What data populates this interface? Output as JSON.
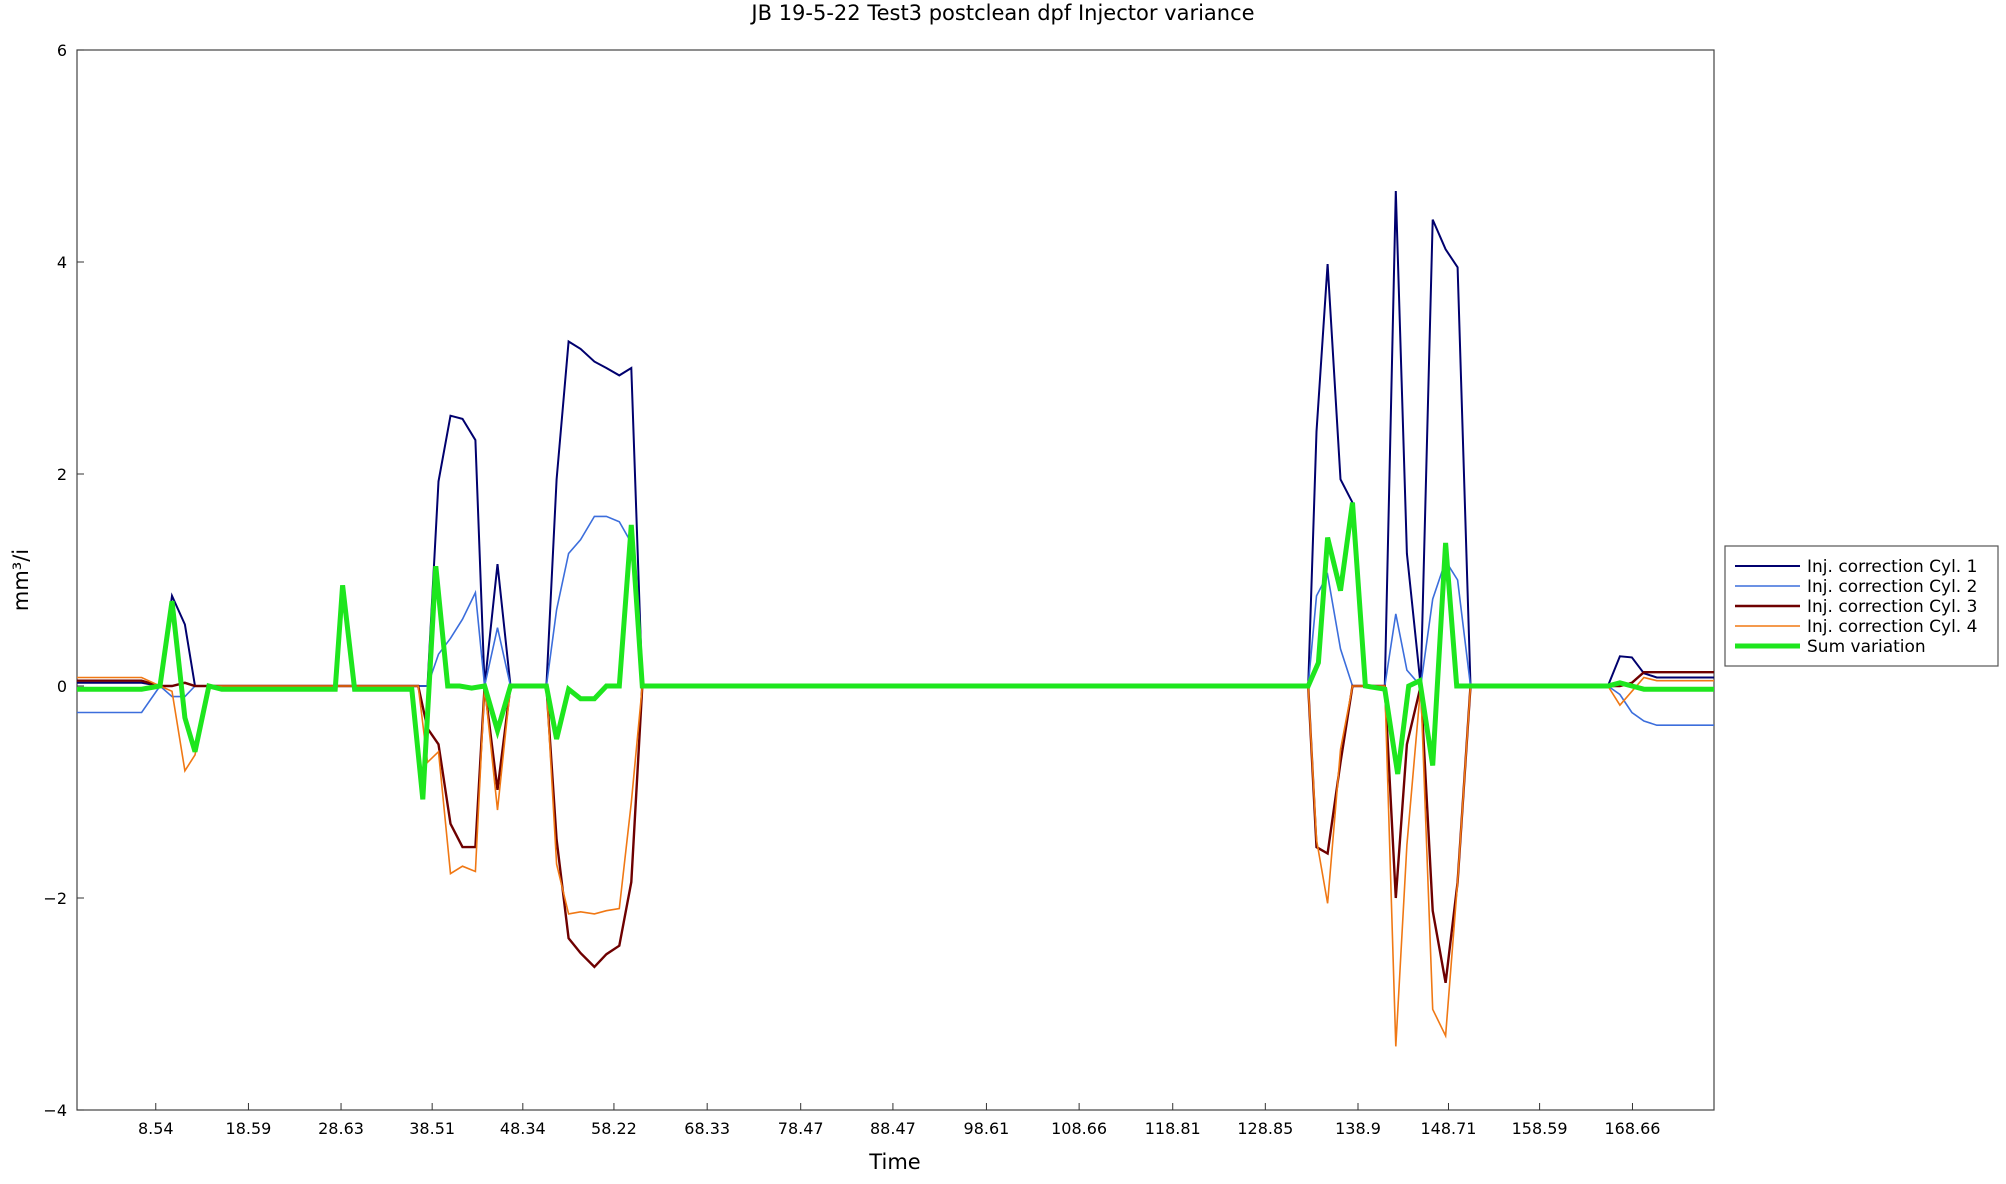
{
  "chart_data": {
    "type": "line",
    "title": "JB 19-5-22 Test3 postclean dpf Injector variance",
    "xlabel": "Time",
    "ylabel": "mm³/i",
    "xlim": [
      0,
      177.5
    ],
    "ylim": [
      -4,
      6
    ],
    "yticks": [
      -4,
      -2,
      0,
      2,
      4,
      6
    ],
    "ytick_labels": [
      "−4",
      "−2",
      "0",
      "2",
      "4",
      "6"
    ],
    "xticks": [
      8.54,
      18.59,
      28.63,
      38.51,
      48.34,
      58.22,
      68.33,
      78.47,
      88.47,
      98.61,
      108.66,
      118.81,
      128.85,
      138.9,
      148.71,
      158.59,
      168.66
    ],
    "xtick_labels": [
      "8.54",
      "18.59",
      "28.63",
      "38.51",
      "48.34",
      "58.22",
      "68.33",
      "78.47",
      "88.47",
      "98.61",
      "108.66",
      "118.81",
      "128.85",
      "138.9",
      "148.71",
      "158.59",
      "168.66"
    ],
    "grid": false,
    "legend_position": "right",
    "series": [
      {
        "name": "Inj. correction Cyl. 1",
        "color": "#00006e",
        "width": 2,
        "points": [
          [
            0,
            0.03
          ],
          [
            7,
            0.03
          ],
          [
            9,
            0
          ],
          [
            10.3,
            0.85
          ],
          [
            11.7,
            0.58
          ],
          [
            12.8,
            0
          ],
          [
            14.3,
            0
          ],
          [
            15.7,
            0
          ],
          [
            18,
            0
          ],
          [
            28,
            0
          ],
          [
            37,
            0
          ],
          [
            38,
            0
          ],
          [
            39.2,
            1.93
          ],
          [
            40.5,
            2.55
          ],
          [
            41.8,
            2.52
          ],
          [
            43.2,
            2.32
          ],
          [
            44.2,
            0
          ],
          [
            45.6,
            1.15
          ],
          [
            47,
            0
          ],
          [
            50.9,
            0
          ],
          [
            52,
            1.95
          ],
          [
            53.3,
            3.25
          ],
          [
            54.6,
            3.18
          ],
          [
            56.1,
            3.06
          ],
          [
            57.4,
            3.0
          ],
          [
            58.8,
            2.93
          ],
          [
            60.1,
            3.0
          ],
          [
            61.3,
            0
          ],
          [
            63,
            0
          ],
          [
            133.5,
            0
          ],
          [
            134.4,
            2.4
          ],
          [
            135.6,
            3.98
          ],
          [
            137,
            1.95
          ],
          [
            138.3,
            1.73
          ],
          [
            139.7,
            0
          ],
          [
            141.8,
            0
          ],
          [
            143,
            4.67
          ],
          [
            144.2,
            1.25
          ],
          [
            145.7,
            0
          ],
          [
            147,
            4.4
          ],
          [
            148.4,
            4.12
          ],
          [
            149.7,
            3.95
          ],
          [
            151.1,
            0
          ],
          [
            166,
            0
          ],
          [
            167.3,
            0.28
          ],
          [
            168.6,
            0.27
          ],
          [
            169.9,
            0.12
          ],
          [
            171.3,
            0.08
          ],
          [
            177.5,
            0.08
          ]
        ]
      },
      {
        "name": "Inj. correction Cyl. 2",
        "color": "#3c6edc",
        "width": 1.6,
        "points": [
          [
            0,
            -0.25
          ],
          [
            7,
            -0.25
          ],
          [
            9,
            0
          ],
          [
            10.3,
            -0.1
          ],
          [
            11.7,
            -0.1
          ],
          [
            12.8,
            0
          ],
          [
            14.3,
            0
          ],
          [
            15.7,
            0
          ],
          [
            18,
            0
          ],
          [
            28,
            0
          ],
          [
            37,
            0
          ],
          [
            38,
            0
          ],
          [
            39.2,
            0.3
          ],
          [
            40.5,
            0.45
          ],
          [
            41.8,
            0.63
          ],
          [
            43.2,
            0.88
          ],
          [
            44.2,
            0
          ],
          [
            45.6,
            0.55
          ],
          [
            47,
            0
          ],
          [
            50.9,
            0
          ],
          [
            52,
            0.72
          ],
          [
            53.3,
            1.25
          ],
          [
            54.6,
            1.38
          ],
          [
            56.1,
            1.6
          ],
          [
            57.4,
            1.6
          ],
          [
            58.8,
            1.55
          ],
          [
            60.1,
            1.35
          ],
          [
            61.3,
            0
          ],
          [
            63,
            0
          ],
          [
            133.5,
            0
          ],
          [
            134.4,
            0.85
          ],
          [
            135.6,
            1.05
          ],
          [
            137,
            0.35
          ],
          [
            138.3,
            0
          ],
          [
            139.7,
            0
          ],
          [
            141.8,
            0
          ],
          [
            143,
            0.68
          ],
          [
            144.2,
            0.15
          ],
          [
            145.7,
            0
          ],
          [
            147,
            0.82
          ],
          [
            148.4,
            1.18
          ],
          [
            149.7,
            1.0
          ],
          [
            151.1,
            0
          ],
          [
            166,
            0
          ],
          [
            167.3,
            -0.08
          ],
          [
            168.6,
            -0.25
          ],
          [
            169.9,
            -0.33
          ],
          [
            171.3,
            -0.37
          ],
          [
            177.5,
            -0.37
          ]
        ]
      },
      {
        "name": "Inj. correction Cyl. 3",
        "color": "#6e0000",
        "width": 2.4,
        "points": [
          [
            0,
            0.05
          ],
          [
            7,
            0.05
          ],
          [
            9,
            0
          ],
          [
            10.3,
            0
          ],
          [
            11.7,
            0.03
          ],
          [
            12.8,
            0
          ],
          [
            14.3,
            0
          ],
          [
            15.7,
            0
          ],
          [
            18,
            0
          ],
          [
            28,
            0
          ],
          [
            37,
            0
          ],
          [
            38,
            -0.4
          ],
          [
            39.2,
            -0.55
          ],
          [
            40.5,
            -1.3
          ],
          [
            41.8,
            -1.52
          ],
          [
            43.2,
            -1.52
          ],
          [
            44.2,
            0
          ],
          [
            45.6,
            -0.98
          ],
          [
            47,
            0
          ],
          [
            50.9,
            0
          ],
          [
            52,
            -1.45
          ],
          [
            53.3,
            -2.38
          ],
          [
            54.6,
            -2.52
          ],
          [
            56.1,
            -2.65
          ],
          [
            57.4,
            -2.53
          ],
          [
            58.8,
            -2.45
          ],
          [
            60.1,
            -1.85
          ],
          [
            61.3,
            0
          ],
          [
            63,
            0
          ],
          [
            133.5,
            0
          ],
          [
            134.4,
            -1.52
          ],
          [
            135.6,
            -1.58
          ],
          [
            137,
            -0.72
          ],
          [
            138.3,
            0
          ],
          [
            139.7,
            0
          ],
          [
            141.8,
            0
          ],
          [
            143,
            -2.0
          ],
          [
            144.2,
            -0.55
          ],
          [
            145.7,
            0
          ],
          [
            147,
            -2.12
          ],
          [
            148.4,
            -2.8
          ],
          [
            149.7,
            -1.85
          ],
          [
            151.1,
            0
          ],
          [
            166,
            0
          ],
          [
            167.3,
            0
          ],
          [
            168.6,
            0.03
          ],
          [
            169.9,
            0.13
          ],
          [
            171.3,
            0.13
          ],
          [
            177.5,
            0.13
          ]
        ]
      },
      {
        "name": "Inj. correction Cyl. 4",
        "color": "#f07814",
        "width": 1.6,
        "points": [
          [
            0,
            0.08
          ],
          [
            7,
            0.08
          ],
          [
            9,
            0
          ],
          [
            10.3,
            -0.05
          ],
          [
            11.7,
            -0.8
          ],
          [
            12.8,
            -0.65
          ],
          [
            14.3,
            0
          ],
          [
            15.7,
            0
          ],
          [
            18,
            0
          ],
          [
            28,
            0
          ],
          [
            37,
            0
          ],
          [
            38,
            -0.72
          ],
          [
            39.2,
            -0.62
          ],
          [
            40.5,
            -1.77
          ],
          [
            41.8,
            -1.7
          ],
          [
            43.2,
            -1.75
          ],
          [
            44.2,
            0
          ],
          [
            45.6,
            -1.17
          ],
          [
            47,
            0
          ],
          [
            50.9,
            0
          ],
          [
            52,
            -1.68
          ],
          [
            53.3,
            -2.15
          ],
          [
            54.6,
            -2.13
          ],
          [
            56.1,
            -2.15
          ],
          [
            57.4,
            -2.12
          ],
          [
            58.8,
            -2.1
          ],
          [
            60.1,
            -1.1
          ],
          [
            61.3,
            0
          ],
          [
            63,
            0
          ],
          [
            133.5,
            0
          ],
          [
            134.4,
            -1.45
          ],
          [
            135.6,
            -2.05
          ],
          [
            137,
            -0.6
          ],
          [
            138.3,
            0
          ],
          [
            139.7,
            0
          ],
          [
            141.8,
            0
          ],
          [
            143,
            -3.4
          ],
          [
            144.2,
            -1.5
          ],
          [
            145.7,
            0
          ],
          [
            147,
            -3.05
          ],
          [
            148.4,
            -3.3
          ],
          [
            149.7,
            -1.85
          ],
          [
            151.1,
            0
          ],
          [
            166,
            0
          ],
          [
            167.3,
            -0.18
          ],
          [
            168.6,
            -0.05
          ],
          [
            169.9,
            0.08
          ],
          [
            171.3,
            0.05
          ],
          [
            177.5,
            0.05
          ]
        ]
      },
      {
        "name": "Sum variation",
        "color": "#1ee61e",
        "width": 5,
        "points": [
          [
            0,
            -0.03
          ],
          [
            7,
            -0.03
          ],
          [
            9,
            0
          ],
          [
            10.3,
            0.8
          ],
          [
            11.7,
            -0.3
          ],
          [
            12.8,
            -0.62
          ],
          [
            14.3,
            0
          ],
          [
            15.7,
            -0.03
          ],
          [
            18,
            -0.03
          ],
          [
            28,
            -0.03
          ],
          [
            28.8,
            0.95
          ],
          [
            30.1,
            -0.03
          ],
          [
            36.3,
            -0.03
          ],
          [
            37.5,
            -1.07
          ],
          [
            38.9,
            1.13
          ],
          [
            40.2,
            0
          ],
          [
            41.5,
            0
          ],
          [
            42.8,
            -0.02
          ],
          [
            44.2,
            0
          ],
          [
            45.6,
            -0.42
          ],
          [
            47,
            0
          ],
          [
            50.9,
            0
          ],
          [
            52,
            -0.5
          ],
          [
            53.3,
            -0.03
          ],
          [
            54.6,
            -0.12
          ],
          [
            56.1,
            -0.12
          ],
          [
            57.4,
            0
          ],
          [
            58.8,
            0
          ],
          [
            60.1,
            1.52
          ],
          [
            61.3,
            0
          ],
          [
            63,
            0
          ],
          [
            133.5,
            0
          ],
          [
            134.6,
            0.22
          ],
          [
            135.6,
            1.4
          ],
          [
            137,
            0.9
          ],
          [
            138.3,
            1.73
          ],
          [
            139.7,
            0
          ],
          [
            141.8,
            -0.03
          ],
          [
            143.2,
            -0.83
          ],
          [
            144.4,
            0
          ],
          [
            145.6,
            0.05
          ],
          [
            147,
            -0.75
          ],
          [
            148.4,
            1.35
          ],
          [
            149.6,
            0
          ],
          [
            151.1,
            0
          ],
          [
            166,
            0
          ],
          [
            167.3,
            0.03
          ],
          [
            168.6,
            0
          ],
          [
            169.9,
            -0.03
          ],
          [
            177.5,
            -0.03
          ]
        ]
      }
    ]
  }
}
